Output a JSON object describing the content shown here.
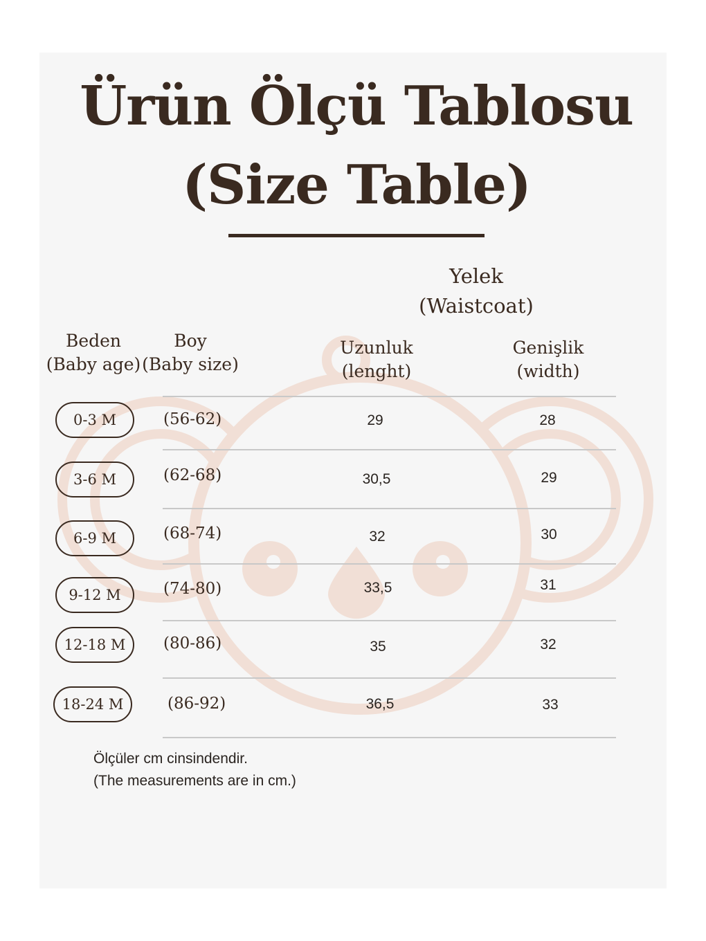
{
  "title_line1": "Ürün Ölçü Tablosu",
  "title_line2": "(Size Table)",
  "product": {
    "name": "Yelek",
    "name_en": "(Waistcoat)"
  },
  "columns": {
    "age": {
      "label": "Beden",
      "sub": "(Baby age)"
    },
    "size": {
      "label": "Boy",
      "sub": "(Baby size)"
    },
    "length": {
      "label": "Uzunluk",
      "sub": "(lenght)"
    },
    "width": {
      "label": "Genişlik",
      "sub": "(width)"
    }
  },
  "rows": [
    {
      "age": "0-3 M",
      "size": "(56-62)",
      "length": "29",
      "width": "28"
    },
    {
      "age": "3-6 M",
      "size": "(62-68)",
      "length": "30,5",
      "width": "29"
    },
    {
      "age": "6-9 M",
      "size": "(68-74)",
      "length": "32",
      "width": "30"
    },
    {
      "age": "9-12 M",
      "size": "(74-80)",
      "length": "33,5",
      "width": "31"
    },
    {
      "age": "12-18 M",
      "size": "(80-86)",
      "length": "35",
      "width": "32"
    },
    {
      "age": "18-24 M",
      "size": "(86-92)",
      "length": "36,5",
      "width": "33"
    }
  ],
  "note_line1": "Ölçüler cm cinsindendir.",
  "note_line2": "(The measurements are in cm.)",
  "colors": {
    "text": "#3a2a20",
    "watermark": "#f1dfd6",
    "panel": "#f6f6f6"
  },
  "watermark_icon": "koala-icon"
}
